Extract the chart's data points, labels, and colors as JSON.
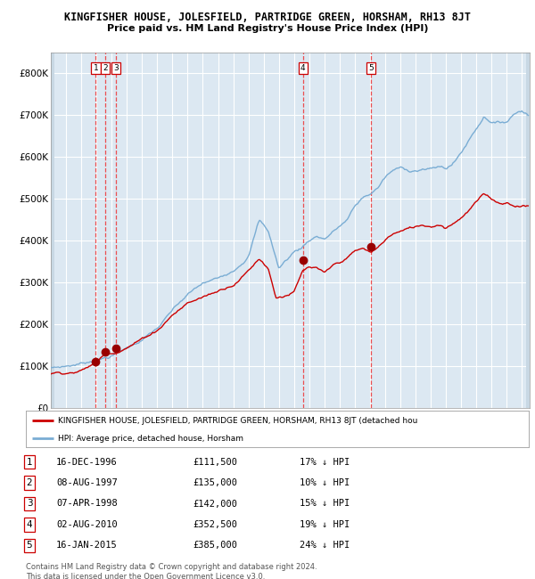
{
  "title": "KINGFISHER HOUSE, JOLESFIELD, PARTRIDGE GREEN, HORSHAM, RH13 8JT",
  "subtitle": "Price paid vs. HM Land Registry's House Price Index (HPI)",
  "xlim_start": 1994.0,
  "xlim_end": 2025.5,
  "ylim": [
    0,
    850000
  ],
  "yticks": [
    0,
    100000,
    200000,
    300000,
    400000,
    500000,
    600000,
    700000,
    800000
  ],
  "ytick_labels": [
    "£0",
    "£100K",
    "£200K",
    "£300K",
    "£400K",
    "£500K",
    "£600K",
    "£700K",
    "£800K"
  ],
  "background_color": "#dce8f2",
  "hatch_facecolor": "#c8d8e4",
  "grid_color": "#ffffff",
  "red_line_color": "#cc0000",
  "blue_line_color": "#7aadd4",
  "marker_color": "#990000",
  "dashed_line_color": "#ee3333",
  "transactions": [
    {
      "id": 1,
      "date_year": 1996.96,
      "price": 111500,
      "label": "1"
    },
    {
      "id": 2,
      "date_year": 1997.6,
      "price": 135000,
      "label": "2"
    },
    {
      "id": 3,
      "date_year": 1998.27,
      "price": 142000,
      "label": "3"
    },
    {
      "id": 4,
      "date_year": 2010.58,
      "price": 352500,
      "label": "4"
    },
    {
      "id": 5,
      "date_year": 2015.04,
      "price": 385000,
      "label": "5"
    }
  ],
  "table_rows": [
    {
      "num": "1",
      "date": "16-DEC-1996",
      "price": "£111,500",
      "note": "17% ↓ HPI"
    },
    {
      "num": "2",
      "date": "08-AUG-1997",
      "price": "£135,000",
      "note": "10% ↓ HPI"
    },
    {
      "num": "3",
      "date": "07-APR-1998",
      "price": "£142,000",
      "note": "15% ↓ HPI"
    },
    {
      "num": "4",
      "date": "02-AUG-2010",
      "price": "£352,500",
      "note": "19% ↓ HPI"
    },
    {
      "num": "5",
      "date": "16-JAN-2015",
      "price": "£385,000",
      "note": "24% ↓ HPI"
    }
  ],
  "legend_red_label": "KINGFISHER HOUSE, JOLESFIELD, PARTRIDGE GREEN, HORSHAM, RH13 8JT (detached hou",
  "legend_blue_label": "HPI: Average price, detached house, Horsham",
  "footer_line1": "Contains HM Land Registry data © Crown copyright and database right 2024.",
  "footer_line2": "This data is licensed under the Open Government Licence v3.0.",
  "hpi_key_points": [
    [
      1994.0,
      95000
    ],
    [
      1995.0,
      100000
    ],
    [
      1996.0,
      107000
    ],
    [
      1997.0,
      118000
    ],
    [
      1998.0,
      130000
    ],
    [
      1999.0,
      148000
    ],
    [
      2000.0,
      170000
    ],
    [
      2001.0,
      195000
    ],
    [
      2002.0,
      235000
    ],
    [
      2003.0,
      270000
    ],
    [
      2004.0,
      295000
    ],
    [
      2005.0,
      305000
    ],
    [
      2006.0,
      330000
    ],
    [
      2007.0,
      370000
    ],
    [
      2007.7,
      455000
    ],
    [
      2008.3,
      430000
    ],
    [
      2009.0,
      340000
    ],
    [
      2009.5,
      360000
    ],
    [
      2010.0,
      380000
    ],
    [
      2010.5,
      390000
    ],
    [
      2011.0,
      410000
    ],
    [
      2011.5,
      420000
    ],
    [
      2012.0,
      415000
    ],
    [
      2012.5,
      430000
    ],
    [
      2013.0,
      445000
    ],
    [
      2013.5,
      460000
    ],
    [
      2014.0,
      490000
    ],
    [
      2014.5,
      510000
    ],
    [
      2015.0,
      520000
    ],
    [
      2015.5,
      535000
    ],
    [
      2016.0,
      560000
    ],
    [
      2016.5,
      575000
    ],
    [
      2017.0,
      580000
    ],
    [
      2017.5,
      575000
    ],
    [
      2018.0,
      578000
    ],
    [
      2018.5,
      582000
    ],
    [
      2019.0,
      580000
    ],
    [
      2019.5,
      585000
    ],
    [
      2020.0,
      582000
    ],
    [
      2020.5,
      595000
    ],
    [
      2021.0,
      620000
    ],
    [
      2021.5,
      650000
    ],
    [
      2022.0,
      680000
    ],
    [
      2022.5,
      710000
    ],
    [
      2023.0,
      700000
    ],
    [
      2023.5,
      695000
    ],
    [
      2024.0,
      700000
    ],
    [
      2024.5,
      720000
    ],
    [
      2025.0,
      730000
    ],
    [
      2025.4,
      720000
    ]
  ],
  "red_key_points": [
    [
      1994.0,
      83000
    ],
    [
      1995.0,
      87000
    ],
    [
      1996.0,
      93000
    ],
    [
      1996.96,
      111500
    ],
    [
      1997.6,
      135000
    ],
    [
      1998.27,
      142000
    ],
    [
      1999.0,
      155000
    ],
    [
      2000.0,
      175000
    ],
    [
      2001.0,
      198000
    ],
    [
      2002.0,
      237000
    ],
    [
      2003.0,
      265000
    ],
    [
      2004.0,
      280000
    ],
    [
      2005.0,
      295000
    ],
    [
      2006.0,
      315000
    ],
    [
      2007.0,
      350000
    ],
    [
      2007.7,
      380000
    ],
    [
      2008.3,
      360000
    ],
    [
      2008.8,
      290000
    ],
    [
      2009.3,
      295000
    ],
    [
      2010.0,
      305000
    ],
    [
      2010.58,
      352500
    ],
    [
      2011.0,
      360000
    ],
    [
      2011.5,
      355000
    ],
    [
      2012.0,
      340000
    ],
    [
      2012.5,
      355000
    ],
    [
      2013.0,
      365000
    ],
    [
      2013.5,
      375000
    ],
    [
      2014.0,
      390000
    ],
    [
      2014.5,
      395000
    ],
    [
      2015.04,
      385000
    ],
    [
      2015.5,
      395000
    ],
    [
      2016.0,
      415000
    ],
    [
      2016.5,
      430000
    ],
    [
      2017.0,
      435000
    ],
    [
      2017.5,
      440000
    ],
    [
      2018.0,
      445000
    ],
    [
      2018.5,
      450000
    ],
    [
      2019.0,
      448000
    ],
    [
      2019.5,
      455000
    ],
    [
      2020.0,
      450000
    ],
    [
      2020.5,
      462000
    ],
    [
      2021.0,
      478000
    ],
    [
      2021.5,
      495000
    ],
    [
      2022.0,
      515000
    ],
    [
      2022.5,
      530000
    ],
    [
      2023.0,
      520000
    ],
    [
      2023.5,
      510000
    ],
    [
      2024.0,
      515000
    ],
    [
      2024.5,
      505000
    ],
    [
      2025.0,
      510000
    ],
    [
      2025.4,
      508000
    ]
  ]
}
